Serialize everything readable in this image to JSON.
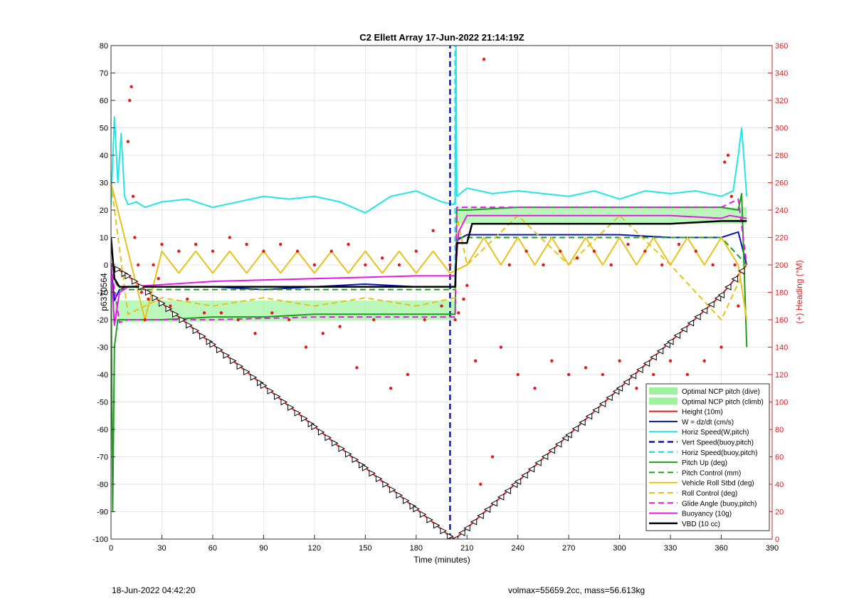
{
  "chart_data": {
    "type": "line",
    "title": "C2 Ellett Array 17-Jun-2022 21:14:19Z",
    "xlabel": "Time (minutes)",
    "ylabel_left": "p6370564",
    "ylabel_right": "(+) Heading (°M)",
    "xlim": [
      0,
      390
    ],
    "ylim_left": [
      -100,
      80
    ],
    "ylim_right": [
      0,
      360
    ],
    "xticks": [
      0,
      30,
      60,
      90,
      120,
      150,
      180,
      210,
      240,
      270,
      300,
      330,
      360,
      390
    ],
    "yticks_left": [
      -100,
      -90,
      -80,
      -70,
      -60,
      -50,
      -40,
      -30,
      -20,
      -10,
      0,
      10,
      20,
      30,
      40,
      50,
      60,
      70,
      80
    ],
    "yticks_right": [
      0,
      20,
      40,
      60,
      80,
      100,
      120,
      140,
      160,
      180,
      200,
      220,
      240,
      260,
      280,
      300,
      320,
      340,
      360
    ],
    "grid": true,
    "legend_location": "bottom-right",
    "colors": {
      "height": "#e31a1c",
      "w": "#0a14b4",
      "horiz_speed": "#22e6e6",
      "vert_speed_buoy": "#0a14c8",
      "horiz_speed_buoy": "#22e6e6",
      "pitch_up": "#1aa01a",
      "pitch_control": "#1aa01a",
      "vehicle_roll": "#e6c21a",
      "roll_control": "#e6c21a",
      "glide_angle": "#e61ae6",
      "buoyancy": "#e61ae6",
      "vbd": "#000000",
      "heading": "#e31a1c",
      "ncp_band": "#9ef29e",
      "right_axis": "#d62020"
    },
    "series": [
      {
        "name": "Optimal NCP pitch (dive)",
        "kind": "band",
        "x": [
          1,
          203
        ],
        "low": [
          -21,
          -20
        ],
        "high": [
          -13,
          -13
        ]
      },
      {
        "name": "Optimal NCP pitch (climb)",
        "kind": "band",
        "x": [
          203,
          375
        ],
        "low": [
          15,
          15
        ],
        "high": [
          21,
          21
        ]
      },
      {
        "name": "Height (10m)",
        "kind": "line",
        "x": [
          0,
          10,
          30,
          60,
          90,
          120,
          150,
          180,
          200,
          203,
          210,
          240,
          270,
          300,
          330,
          360,
          375
        ],
        "y": [
          0,
          -4,
          -14,
          -29,
          -44,
          -59,
          -74,
          -89,
          -99,
          -100,
          -96,
          -79,
          -62,
          -45,
          -28,
          -11,
          0
        ]
      },
      {
        "name": "W = dz/dt (cm/s)",
        "kind": "line",
        "x": [
          0,
          2,
          5,
          10,
          30,
          60,
          90,
          120,
          150,
          180,
          203,
          204,
          210,
          240,
          270,
          300,
          330,
          360,
          370,
          375
        ],
        "y": [
          0,
          -13,
          -9,
          -8,
          -8,
          -8,
          -9,
          -8,
          -7,
          -8,
          -8,
          9,
          11,
          11,
          11,
          11,
          10,
          10,
          12,
          0
        ]
      },
      {
        "name": "Horiz Speed(W,pitch)",
        "kind": "line",
        "x": [
          0,
          2,
          4,
          6,
          8,
          10,
          15,
          20,
          30,
          45,
          60,
          75,
          90,
          105,
          120,
          135,
          150,
          165,
          180,
          195,
          202,
          203,
          203.5,
          204,
          206,
          210,
          225,
          240,
          255,
          270,
          285,
          300,
          315,
          330,
          345,
          360,
          367,
          370,
          372,
          375
        ],
        "y": [
          22,
          54,
          30,
          48,
          25,
          22,
          23,
          21,
          23,
          24,
          21,
          23,
          25,
          24,
          25,
          23,
          19,
          25,
          27,
          23,
          22,
          23,
          80,
          25,
          26,
          28,
          26,
          27,
          26,
          25,
          27,
          24,
          27,
          26,
          27,
          25,
          27,
          40,
          50,
          25
        ]
      },
      {
        "name": "Vert Speed(buoy,pitch)",
        "kind": "dashed",
        "x": [
          200,
          200
        ],
        "y": [
          -100,
          80
        ]
      },
      {
        "name": "Horiz Speed(buoy,pitch)",
        "kind": "dashed",
        "x": [
          203,
          203
        ],
        "y": [
          -5,
          80
        ]
      },
      {
        "name": "Pitch Up (deg)",
        "kind": "line",
        "x": [
          0,
          1,
          2,
          4,
          10,
          30,
          60,
          90,
          120,
          150,
          180,
          203,
          204,
          210,
          240,
          270,
          300,
          330,
          360,
          370,
          372,
          375
        ],
        "y": [
          0,
          -90,
          -30,
          -20,
          -20,
          -20,
          -19,
          -19,
          -18,
          -18,
          -18,
          -18,
          20,
          20,
          21,
          21,
          21,
          21,
          21,
          20,
          26,
          -30
        ]
      },
      {
        "name": "Pitch Control (mm)",
        "kind": "dashed",
        "x": [
          0,
          5,
          10,
          30,
          60,
          90,
          120,
          150,
          180,
          203,
          204,
          210,
          240,
          270,
          300,
          330,
          360,
          375
        ],
        "y": [
          -3,
          -9,
          -9,
          -9,
          -9,
          -9,
          -9,
          -9,
          -9,
          -9,
          10,
          10,
          10,
          10,
          10,
          10,
          10,
          0
        ]
      },
      {
        "name": "Vehicle Roll Stbd (deg)",
        "kind": "line",
        "x": [
          0,
          10,
          20,
          30,
          40,
          50,
          60,
          70,
          80,
          90,
          100,
          110,
          120,
          130,
          140,
          150,
          160,
          170,
          180,
          190,
          200,
          210,
          220,
          230,
          240,
          250,
          260,
          270,
          280,
          290,
          300,
          310,
          320,
          330,
          340,
          350,
          360,
          370,
          375
        ],
        "y": [
          30,
          5,
          -20,
          5,
          -3,
          5,
          -3,
          5,
          -3,
          5,
          -3,
          5,
          -3,
          5,
          -3,
          5,
          -3,
          5,
          -3,
          5,
          -3,
          0,
          10,
          0,
          10,
          0,
          10,
          0,
          10,
          0,
          10,
          0,
          10,
          0,
          10,
          0,
          10,
          0,
          -20
        ]
      },
      {
        "name": "Roll Control (deg)",
        "kind": "dashed",
        "x": [
          0,
          10,
          30,
          60,
          90,
          120,
          150,
          180,
          203,
          204,
          210,
          240,
          270,
          300,
          330,
          360,
          375
        ],
        "y": [
          30,
          -18,
          -12,
          -15,
          -12,
          -15,
          -12,
          -15,
          -12,
          18,
          0,
          18,
          0,
          18,
          0,
          -20,
          0
        ]
      },
      {
        "name": "Glide Angle (buoy,pitch)",
        "kind": "dashed",
        "x": [
          0,
          5,
          10,
          60,
          120,
          180,
          203,
          204,
          240,
          300,
          360,
          370,
          375
        ],
        "y": [
          0,
          -21,
          -20,
          -20,
          -19,
          -19,
          -19,
          21,
          21,
          21,
          21,
          24,
          0
        ]
      },
      {
        "name": "Buoyancy (10g)",
        "kind": "line",
        "x": [
          0,
          2,
          5,
          10,
          60,
          120,
          180,
          200,
          203,
          205,
          210,
          240,
          270,
          300,
          330,
          360,
          365,
          375
        ],
        "y": [
          0,
          -22,
          -10,
          -8,
          -6,
          -5,
          -4,
          -4,
          -4,
          12,
          18,
          18,
          18,
          18,
          18,
          17,
          18,
          17
        ]
      },
      {
        "name": "VBD (10 cc)",
        "kind": "line",
        "x": [
          0,
          2,
          5,
          10,
          30,
          60,
          90,
          120,
          150,
          180,
          203,
          204,
          210,
          213,
          240,
          270,
          300,
          330,
          360,
          375
        ],
        "y": [
          10,
          -5,
          -8,
          -8,
          -8,
          -8,
          -8,
          -8,
          -8,
          -8,
          -8,
          8,
          8,
          15,
          15,
          15,
          15,
          15,
          16,
          16
        ]
      }
    ],
    "heading": {
      "axis": "right",
      "color": "#e31a1c",
      "x": [
        10,
        11,
        12,
        13,
        14,
        16,
        18,
        20,
        22,
        25,
        28,
        30,
        35,
        40,
        45,
        50,
        55,
        60,
        65,
        70,
        75,
        80,
        85,
        90,
        95,
        100,
        105,
        110,
        115,
        120,
        125,
        130,
        135,
        140,
        145,
        150,
        155,
        160,
        165,
        170,
        175,
        180,
        185,
        190,
        195,
        200,
        203,
        205,
        208,
        210,
        215,
        218,
        220,
        225,
        230,
        235,
        240,
        245,
        250,
        255,
        260,
        265,
        270,
        275,
        280,
        285,
        290,
        295,
        300,
        305,
        310,
        315,
        320,
        325,
        330,
        335,
        340,
        345,
        350,
        355,
        360,
        362,
        364,
        366,
        368,
        370
      ],
      "y": [
        290,
        320,
        330,
        250,
        220,
        200,
        180,
        160,
        175,
        200,
        190,
        215,
        170,
        210,
        175,
        215,
        165,
        210,
        165,
        220,
        160,
        215,
        150,
        210,
        165,
        215,
        160,
        210,
        140,
        200,
        150,
        210,
        155,
        215,
        125,
        200,
        160,
        205,
        110,
        200,
        120,
        210,
        160,
        225,
        170,
        200,
        160,
        165,
        175,
        185,
        130,
        40,
        350,
        60,
        140,
        200,
        120,
        210,
        110,
        200,
        130,
        210,
        120,
        205,
        125,
        210,
        120,
        200,
        130,
        215,
        110,
        210,
        120,
        200,
        130,
        215,
        120,
        210,
        130,
        200,
        140,
        275,
        280,
        250,
        200,
        170
      ]
    }
  },
  "footer": {
    "left": "18-Jun-2022 04:42:20",
    "right": "volmax=55659.2cc, mass=56.613kg"
  }
}
